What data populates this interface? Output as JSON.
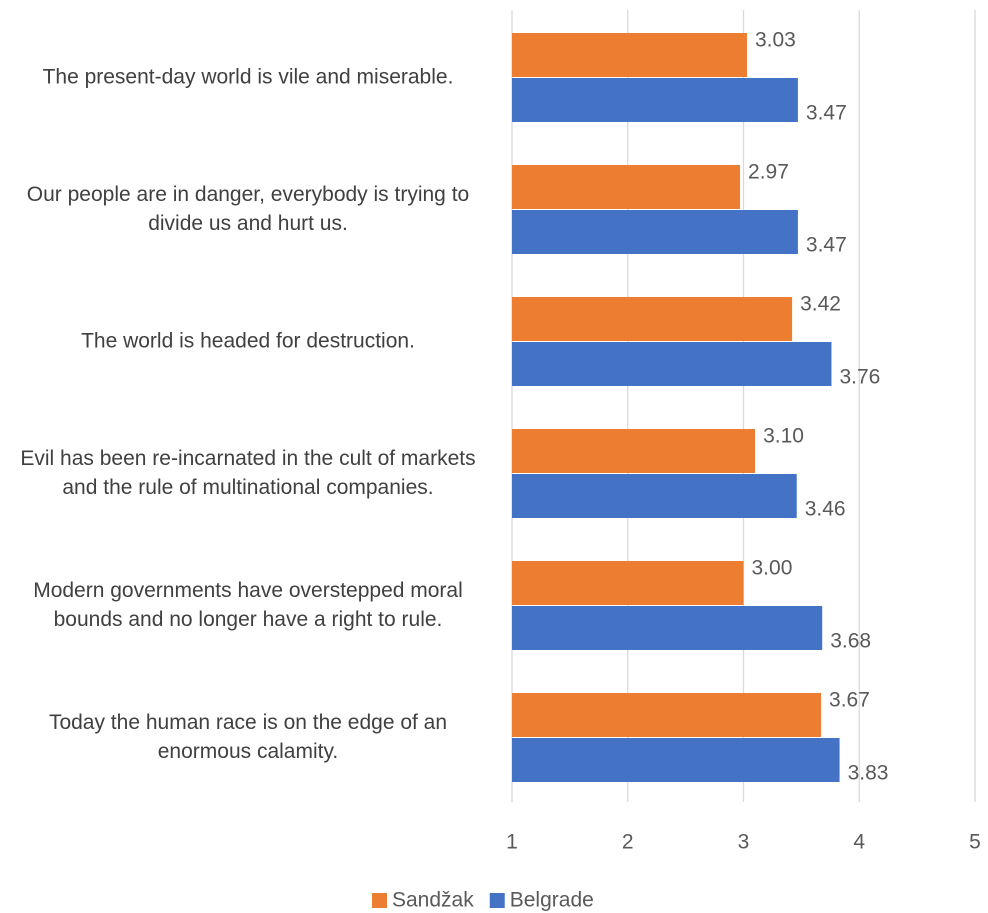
{
  "chart_data": {
    "type": "bar",
    "orientation": "horizontal",
    "categories": [
      "The present-day world is vile and miserable.",
      "Our people are in danger, everybody is trying to divide us and hurt us.",
      "The world is headed for destruction.",
      "Evil has been re-incarnated in the cult of markets and the rule of multinational companies.",
      "Modern governments have overstepped moral bounds and no longer have a right to rule.",
      "Today the human race is on the edge of an enormous calamity."
    ],
    "series": [
      {
        "name": "Sandžak",
        "color": "#ed7d31",
        "values": [
          3.03,
          2.97,
          3.42,
          3.1,
          3.0,
          3.67
        ],
        "value_labels": [
          "3.03",
          "2.97",
          "3.42",
          "3.10",
          "3.00",
          "3.67"
        ]
      },
      {
        "name": "Belgrade",
        "color": "#4472c4",
        "values": [
          3.47,
          3.47,
          3.76,
          3.46,
          3.68,
          3.83
        ],
        "value_labels": [
          "3.47",
          "3.47",
          "3.76",
          "3.46",
          "3.68",
          "3.83"
        ]
      }
    ],
    "xlim": [
      1,
      5
    ],
    "xticks": [
      1,
      2,
      3,
      4,
      5
    ],
    "grid": true,
    "legend": "bottom"
  }
}
